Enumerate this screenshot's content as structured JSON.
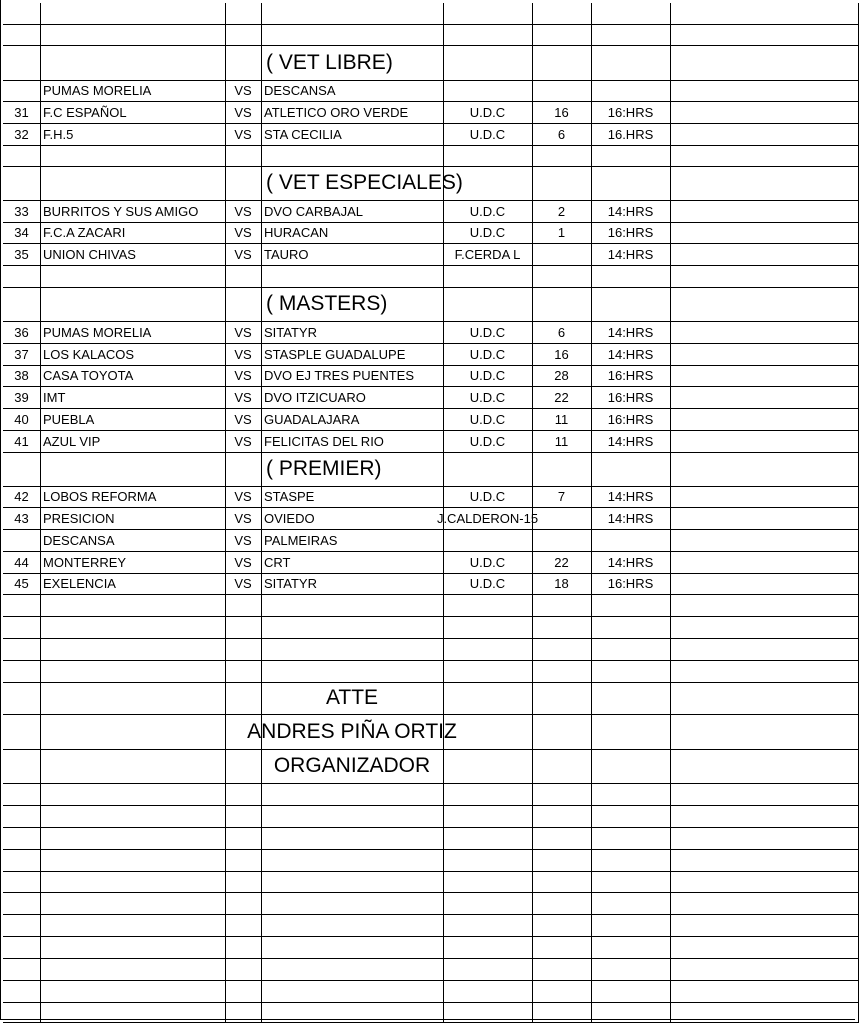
{
  "rows": [
    {
      "title": "( VET LIBRE)"
    },
    {
      "home": "PUMAS MORELIA",
      "vs": "VS",
      "away": "DESCANSA"
    },
    {
      "num": "31",
      "home": "F.C ESPAÑOL",
      "vs": "VS",
      "away": "ATLETICO ORO VERDE",
      "venue": "U.D.C",
      "score": "16",
      "time": "16:HRS"
    },
    {
      "num": "32",
      "home": "F.H.5",
      "vs": "VS",
      "away": "STA CECILIA",
      "venue": "U.D.C",
      "score": "6",
      "time": "16.HRS"
    },
    {
      "title": "( VET ESPECIALES)"
    },
    {
      "num": "33",
      "home": "BURRITOS Y SUS AMIGO",
      "vs": "VS",
      "away": "DVO CARBAJAL",
      "venue": "U.D.C",
      "score": "2",
      "time": "14:HRS"
    },
    {
      "num": "34",
      "home": "F.C.A ZACARI",
      "vs": "VS",
      "away": "HURACAN",
      "venue": "U.D.C",
      "score": "1",
      "time": "16:HRS"
    },
    {
      "num": "35",
      "home": "UNION CHIVAS",
      "vs": "VS",
      "away": "TAURO",
      "venue": "F.CERDA L",
      "time": "14:HRS"
    },
    {
      "title": "( MASTERS)"
    },
    {
      "num": "36",
      "home": "PUMAS MORELIA",
      "vs": "VS",
      "away": "SITATYR",
      "venue": "U.D.C",
      "score": "6",
      "time": "14:HRS"
    },
    {
      "num": "37",
      "home": "LOS KALACOS",
      "vs": "VS",
      "away": "STASPLE GUADALUPE",
      "venue": "U.D.C",
      "score": "16",
      "time": "14:HRS"
    },
    {
      "num": "38",
      "home": "CASA TOYOTA",
      "vs": "VS",
      "away": "DVO EJ TRES PUENTES",
      "venue": "U.D.C",
      "score": "28",
      "time": "16:HRS"
    },
    {
      "num": "39",
      "home": "IMT",
      "vs": "VS",
      "away": "DVO ITZICUARO",
      "venue": "U.D.C",
      "score": "22",
      "time": "16:HRS"
    },
    {
      "num": "40",
      "home": "PUEBLA",
      "vs": "VS",
      "away": "GUADALAJARA",
      "venue": "U.D.C",
      "score": "11",
      "time": "16:HRS"
    },
    {
      "num": "41",
      "home": "AZUL VIP",
      "vs": "VS",
      "away": "FELICITAS DEL RIO",
      "venue": "U.D.C",
      "score": "11",
      "time": "14:HRS"
    },
    {
      "title": "( PREMIER)"
    },
    {
      "num": "42",
      "home": "LOBOS REFORMA",
      "vs": "VS",
      "away": "STASPE",
      "venue": "U.D.C",
      "score": "7",
      "time": "14:HRS"
    },
    {
      "num": "43",
      "home": "PRESICION",
      "vs": "VS",
      "away": "OVIEDO",
      "venue": "J.CALDERON-15",
      "time": "14:HRS"
    },
    {
      "home": "DESCANSA",
      "vs": "VS",
      "away": "PALMEIRAS"
    },
    {
      "num": "44",
      "home": "MONTERREY",
      "vs": "VS",
      "away": "CRT",
      "venue": "U.D.C",
      "score": "22",
      "time": "14:HRS"
    },
    {
      "num": "45",
      "home": "EXELENCIA",
      "vs": "VS",
      "away": "SITATYR",
      "venue": "U.D.C",
      "score": "18",
      "time": "16:HRS"
    },
    {
      "sign": "ATTE"
    },
    {
      "sign": "ANDRES PIÑA ORTIZ"
    },
    {
      "sign": "ORGANIZADOR"
    }
  ]
}
